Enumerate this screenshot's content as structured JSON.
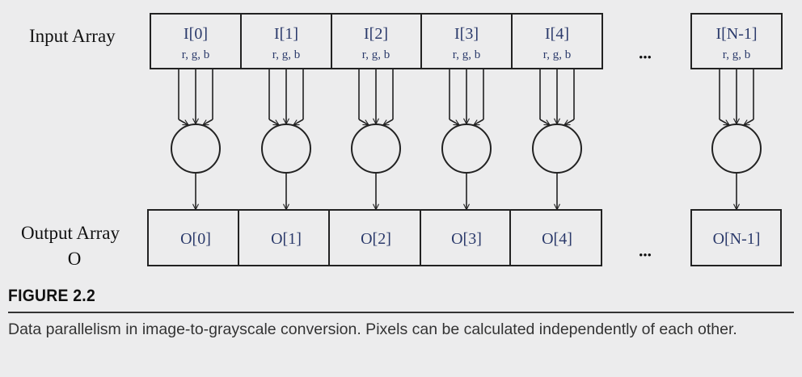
{
  "diagram": {
    "input_label": "Input Array",
    "output_label_line1": "Output Array",
    "output_label_line2": "O",
    "inputs": [
      {
        "name": "I[0]",
        "channels": "r, g, b"
      },
      {
        "name": "I[1]",
        "channels": "r, g, b"
      },
      {
        "name": "I[2]",
        "channels": "r, g, b"
      },
      {
        "name": "I[3]",
        "channels": "r, g, b"
      },
      {
        "name": "I[4]",
        "channels": "r, g, b"
      },
      {
        "name": "I[N-1]",
        "channels": "r, g, b"
      }
    ],
    "outputs": [
      "O[0]",
      "O[1]",
      "O[2]",
      "O[3]",
      "O[4]",
      "O[N-1]"
    ],
    "ellipsis": "•••",
    "colors": {
      "cell_text": "#2b3a6b",
      "label_text": "#111111",
      "line": "#222222"
    }
  },
  "figure": {
    "number": "FIGURE 2.2",
    "caption": "Data parallelism in image-to-grayscale conversion. Pixels can be calculated independently of each other."
  }
}
